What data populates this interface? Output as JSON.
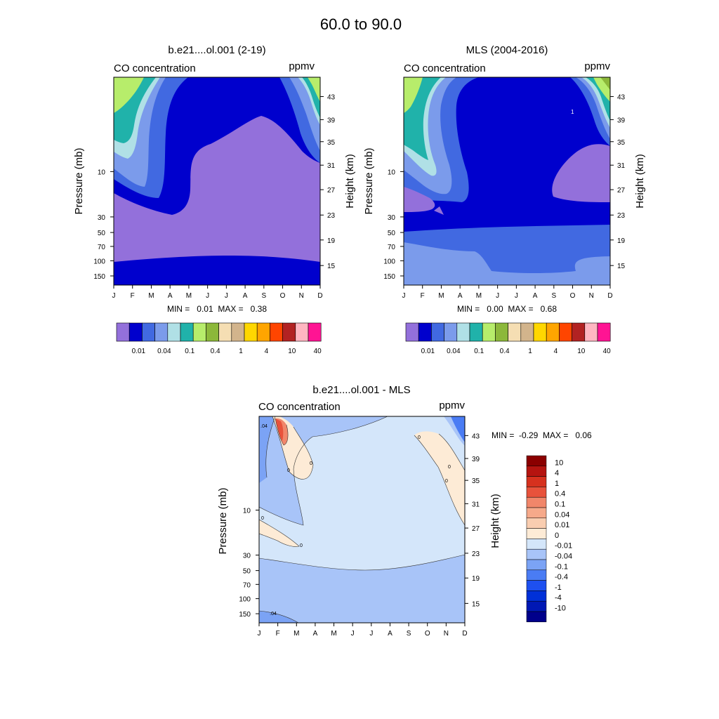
{
  "figure": {
    "title": "60.0 to  90.0",
    "colors": {
      "levels_abs": [
        "#9370DB",
        "#0000CD",
        "#4169E1",
        "#7B9BEB",
        "#B0E0E6",
        "#20B2AA",
        "#B7ED6B",
        "#8CB83A",
        "#F5DEB3",
        "#D2B48C",
        "#FFD700",
        "#FFA500",
        "#FF4500",
        "#B22222",
        "#FFB6C1",
        "#FF1493"
      ],
      "levels_diff": [
        "#00008B",
        "#0018B4",
        "#0030D8",
        "#1E50F0",
        "#4A7CF4",
        "#7BA3F5",
        "#A8C4F8",
        "#D4E6FA",
        "#FDEBD6",
        "#F9CDB0",
        "#F6A98A",
        "#F1866A",
        "#E8523B",
        "#D6311E",
        "#B51410",
        "#8B0000"
      ]
    }
  },
  "panels": [
    {
      "title": "b.e21....ol.001 (2-19)",
      "left_label": "CO concentration",
      "right_label": "ppmv",
      "stats": "MIN =   0.01  MAX =   0.38",
      "ylabel": "Pressure (mb)",
      "ylabel_right": "Height (km)"
    },
    {
      "title": "MLS (2004-2016)",
      "left_label": "CO concentration",
      "right_label": "ppmv",
      "stats": "MIN =   0.00  MAX =   0.68",
      "ylabel": "Pressure (mb)",
      "ylabel_right": "Height (km)",
      "contour_label": "1"
    },
    {
      "title": "b.e21....ol.001 - MLS",
      "left_label": "CO concentration",
      "right_label": "ppmv",
      "stats": "MIN =  -0.29  MAX =   0.06",
      "ylabel": "Pressure (mb)",
      "ylabel_right": "Height (km)",
      "contour_labels": [
        ".04",
        ".04",
        "0",
        "0",
        "0",
        "0",
        "0",
        "0",
        "0"
      ]
    }
  ],
  "chart_data": [
    {
      "type": "contour",
      "title": "b.e21....ol.001 (2-19)",
      "x_categories": [
        "J",
        "F",
        "M",
        "A",
        "M",
        "J",
        "J",
        "A",
        "S",
        "O",
        "N",
        "D"
      ],
      "y_pressure_ticks": [
        "10",
        "30",
        "50",
        "70",
        "100",
        "150"
      ],
      "y_height_ticks": [
        "43",
        "39",
        "35",
        "31",
        "27",
        "23",
        "19",
        "15"
      ],
      "xlabel": "",
      "ylabel": "Pressure (mb)",
      "ylabel_right": "Height (km)",
      "min": 0.01,
      "max": 0.38,
      "colorbar_labels": [
        "0.01",
        "0.04",
        "0.1",
        "0.4",
        "1",
        "4",
        "10",
        "40"
      ]
    },
    {
      "type": "contour",
      "title": "MLS (2004-2016)",
      "x_categories": [
        "J",
        "F",
        "M",
        "A",
        "M",
        "J",
        "J",
        "A",
        "S",
        "O",
        "N",
        "D"
      ],
      "y_pressure_ticks": [
        "10",
        "30",
        "50",
        "70",
        "100",
        "150"
      ],
      "y_height_ticks": [
        "43",
        "39",
        "35",
        "31",
        "27",
        "23",
        "19",
        "15"
      ],
      "xlabel": "",
      "ylabel": "Pressure (mb)",
      "ylabel_right": "Height (km)",
      "min": 0.0,
      "max": 0.68,
      "colorbar_labels": [
        "0.01",
        "0.04",
        "0.1",
        "0.4",
        "1",
        "4",
        "10",
        "40"
      ]
    },
    {
      "type": "contour",
      "title": "b.e21....ol.001 - MLS",
      "x_categories": [
        "J",
        "F",
        "M",
        "A",
        "M",
        "J",
        "J",
        "A",
        "S",
        "O",
        "N",
        "D"
      ],
      "y_pressure_ticks": [
        "10",
        "30",
        "50",
        "70",
        "100",
        "150"
      ],
      "y_height_ticks": [
        "43",
        "39",
        "35",
        "31",
        "27",
        "23",
        "19",
        "15"
      ],
      "xlabel": "",
      "ylabel": "Pressure (mb)",
      "ylabel_right": "Height (km)",
      "min": -0.29,
      "max": 0.06,
      "colorbar_labels": [
        "10",
        "4",
        "1",
        "0.4",
        "0.1",
        "0.04",
        "0.01",
        "0",
        "-0.01",
        "-0.04",
        "-0.1",
        "-0.4",
        "-1",
        "-4",
        "-10"
      ]
    }
  ]
}
